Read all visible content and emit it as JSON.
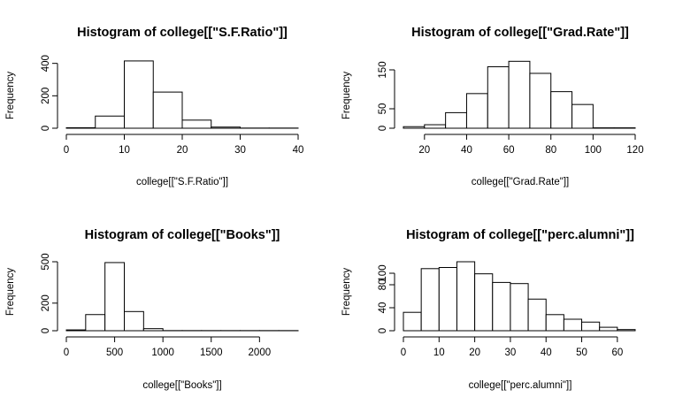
{
  "chart_data": [
    {
      "type": "bar",
      "title": "Histogram of college[[\"S.F.Ratio\"]]",
      "xlabel": "college[[\"S.F.Ratio\"]]",
      "ylabel": "Frequency",
      "bins": [
        [
          0,
          5
        ],
        [
          5,
          10
        ],
        [
          10,
          15
        ],
        [
          15,
          20
        ],
        [
          20,
          25
        ],
        [
          25,
          30
        ],
        [
          30,
          35
        ],
        [
          35,
          40
        ]
      ],
      "values": [
        3,
        75,
        415,
        223,
        50,
        7,
        1,
        1
      ],
      "x_ticks": [
        0,
        10,
        20,
        30,
        40
      ],
      "y_ticks": [
        0,
        200,
        400
      ],
      "xlim": [
        0,
        40
      ],
      "ylim": [
        0,
        420
      ],
      "grid": false
    },
    {
      "type": "bar",
      "title": "Histogram of college[[\"Grad.Rate\"]]",
      "xlabel": "college[[\"Grad.Rate\"]]",
      "ylabel": "Frequency",
      "bins": [
        [
          10,
          20
        ],
        [
          20,
          30
        ],
        [
          30,
          40
        ],
        [
          40,
          50
        ],
        [
          50,
          60
        ],
        [
          60,
          70
        ],
        [
          70,
          80
        ],
        [
          80,
          90
        ],
        [
          90,
          100
        ],
        [
          100,
          110
        ],
        [
          110,
          120
        ]
      ],
      "values": [
        4,
        9,
        40,
        89,
        158,
        172,
        141,
        94,
        61,
        1,
        1
      ],
      "x_ticks": [
        20,
        40,
        60,
        80,
        100,
        120
      ],
      "y_ticks": [
        0,
        50,
        150
      ],
      "xlim": [
        10,
        120
      ],
      "ylim": [
        0,
        175
      ],
      "grid": false
    },
    {
      "type": "bar",
      "title": "Histogram of college[[\"Books\"]]",
      "xlabel": "college[[\"Books\"]]",
      "ylabel": "Frequency",
      "bins": [
        [
          0,
          200
        ],
        [
          200,
          400
        ],
        [
          400,
          600
        ],
        [
          600,
          800
        ],
        [
          800,
          1000
        ],
        [
          1000,
          1200
        ],
        [
          1200,
          1400
        ],
        [
          1400,
          1600
        ],
        [
          1600,
          1800
        ],
        [
          1800,
          2000
        ],
        [
          2000,
          2200
        ],
        [
          2200,
          2400
        ]
      ],
      "values": [
        6,
        117,
        494,
        139,
        15,
        1,
        1,
        1,
        1,
        1,
        1,
        1
      ],
      "x_ticks": [
        0,
        500,
        1000,
        1500,
        2000
      ],
      "y_ticks": [
        0,
        200,
        500
      ],
      "xlim": [
        0,
        2400
      ],
      "ylim": [
        0,
        500
      ],
      "grid": false
    },
    {
      "type": "bar",
      "title": "Histogram of college[[\"perc.alumni\"]]",
      "xlabel": "college[[\"perc.alumni\"]]",
      "ylabel": "Frequency",
      "bins": [
        [
          0,
          5
        ],
        [
          5,
          10
        ],
        [
          10,
          15
        ],
        [
          15,
          20
        ],
        [
          20,
          25
        ],
        [
          25,
          30
        ],
        [
          30,
          35
        ],
        [
          35,
          40
        ],
        [
          40,
          45
        ],
        [
          45,
          50
        ],
        [
          50,
          55
        ],
        [
          55,
          60
        ],
        [
          60,
          65
        ]
      ],
      "values": [
        32,
        108,
        110,
        120,
        99,
        84,
        82,
        55,
        28,
        20,
        15,
        6,
        2
      ],
      "x_ticks": [
        0,
        10,
        20,
        30,
        40,
        50,
        60
      ],
      "y_ticks": [
        0,
        40,
        80,
        100
      ],
      "xlim": [
        0,
        65
      ],
      "ylim": [
        0,
        120
      ],
      "grid": false
    }
  ]
}
